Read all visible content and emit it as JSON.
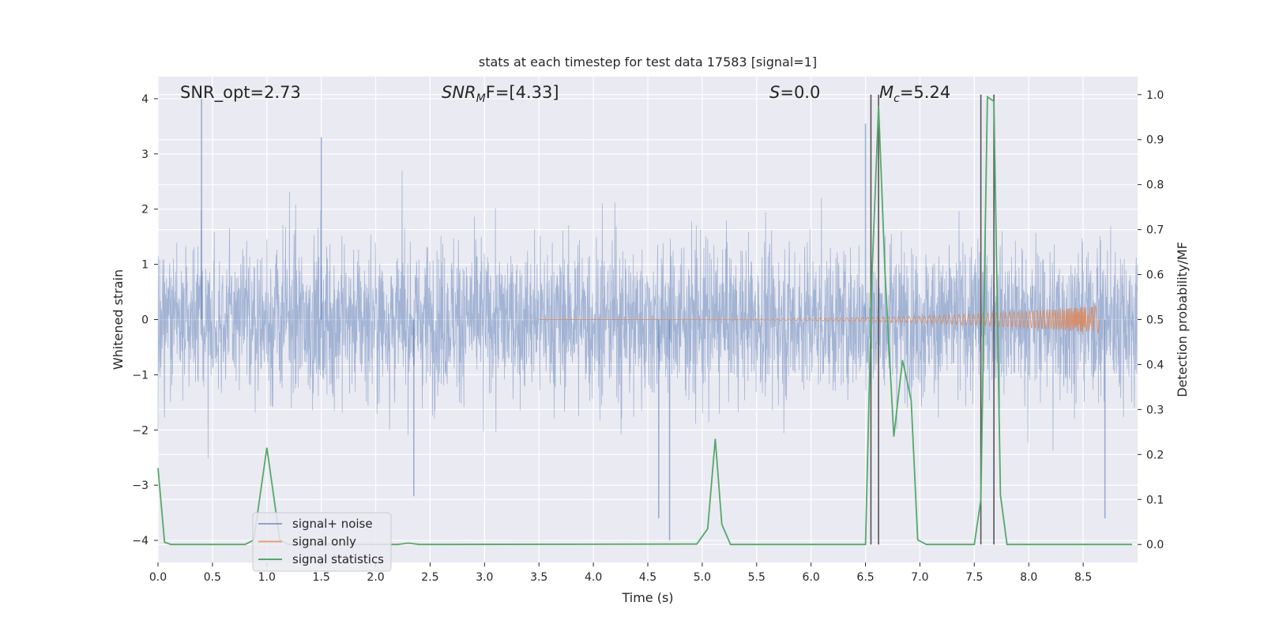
{
  "chart_data": {
    "type": "line",
    "title": "stats at each timestep for test data 17583 [signal=1]",
    "xlabel": "Time (s)",
    "ylabel_left": "Whitened strain",
    "ylabel_right": "Detection probability/MF",
    "xlim": [
      0.0,
      9.0
    ],
    "ylim_left": [
      -4.4,
      4.4
    ],
    "ylim_right": [
      -0.04,
      1.04
    ],
    "x_ticks": [
      0.0,
      0.5,
      1.0,
      1.5,
      2.0,
      2.5,
      3.0,
      3.5,
      4.0,
      4.5,
      5.0,
      5.5,
      6.0,
      6.5,
      7.0,
      7.5,
      8.0,
      8.5
    ],
    "x_tick_labels": [
      "0.0",
      "0.5",
      "1.0",
      "1.5",
      "2.0",
      "2.5",
      "3.0",
      "3.5",
      "4.0",
      "4.5",
      "5.0",
      "5.5",
      "6.0",
      "6.5",
      "7.0",
      "7.5",
      "8.0",
      "8.5"
    ],
    "y_left_ticks": [
      -4,
      -3,
      -2,
      -1,
      0,
      1,
      2,
      3,
      4
    ],
    "y_left_tick_labels": [
      "−4",
      "−3",
      "−2",
      "−1",
      "0",
      "1",
      "2",
      "3",
      "4"
    ],
    "y_right_ticks": [
      0.0,
      0.1,
      0.2,
      0.3,
      0.4,
      0.5,
      0.6,
      0.7,
      0.8,
      0.9,
      1.0
    ],
    "y_right_tick_labels": [
      "0.0",
      "0.1",
      "0.2",
      "0.3",
      "0.4",
      "0.5",
      "0.6",
      "0.7",
      "0.8",
      "0.9",
      "1.0"
    ],
    "grid": true,
    "legend_placement": "lower-left",
    "annotations": [
      {
        "plain": "SNR_opt=2.73",
        "italic": "",
        "sub": "",
        "rest": ""
      },
      {
        "plain": "",
        "italic": "SNR",
        "sub": "M",
        "rest": "F=[4.33]"
      },
      {
        "plain": "",
        "italic": "S",
        "sub": "",
        "rest": "=0.0"
      },
      {
        "plain": "",
        "italic": "M",
        "sub": "c",
        "rest": "=5.24"
      }
    ],
    "vertical_lines_x": [
      6.55,
      6.62,
      7.56,
      7.68
    ],
    "colors": {
      "background": "#eaeaf2",
      "grid": "#ffffff",
      "noise": "#4c72b0",
      "signal": "#dd8452",
      "statistics": "#55a868",
      "vlines": "#555555"
    },
    "series": [
      {
        "name": "signal+ noise",
        "style": "dense noise trace",
        "amplitude_envelope": 1.0,
        "peak_extremes": [
          {
            "x": 0.4,
            "y": 4.0
          },
          {
            "x": 1.5,
            "y": 3.3
          },
          {
            "x": 4.7,
            "y": -4.0
          },
          {
            "x": 4.6,
            "y": -3.6
          },
          {
            "x": 2.35,
            "y": -3.2
          },
          {
            "x": 8.7,
            "y": -3.6
          },
          {
            "x": 6.5,
            "y": 3.55
          }
        ]
      },
      {
        "name": "signal only",
        "style": "chirp",
        "start_x": 3.5,
        "end_x": 8.65,
        "end_amplitude": 0.25
      },
      {
        "name": "signal statistics",
        "axis": "right",
        "x": [
          0.0,
          0.06,
          0.12,
          0.8,
          0.88,
          1.0,
          1.12,
          1.2,
          2.2,
          2.3,
          2.4,
          4.8,
          4.95,
          5.05,
          5.12,
          5.18,
          5.26,
          6.5,
          6.56,
          6.62,
          6.68,
          6.76,
          6.84,
          6.92,
          6.98,
          7.06,
          7.5,
          7.56,
          7.62,
          7.68,
          7.74,
          7.8,
          8.95
        ],
        "y": [
          0.17,
          0.005,
          0.0,
          0.0,
          0.01,
          0.215,
          0.01,
          0.0,
          0.0,
          0.003,
          0.0,
          0.001,
          0.001,
          0.035,
          0.235,
          0.045,
          0.0,
          0.0,
          0.6,
          0.975,
          0.6,
          0.24,
          0.41,
          0.32,
          0.01,
          0.0,
          0.0,
          0.1,
          0.995,
          0.985,
          0.11,
          0.0,
          0.0
        ]
      }
    ]
  }
}
